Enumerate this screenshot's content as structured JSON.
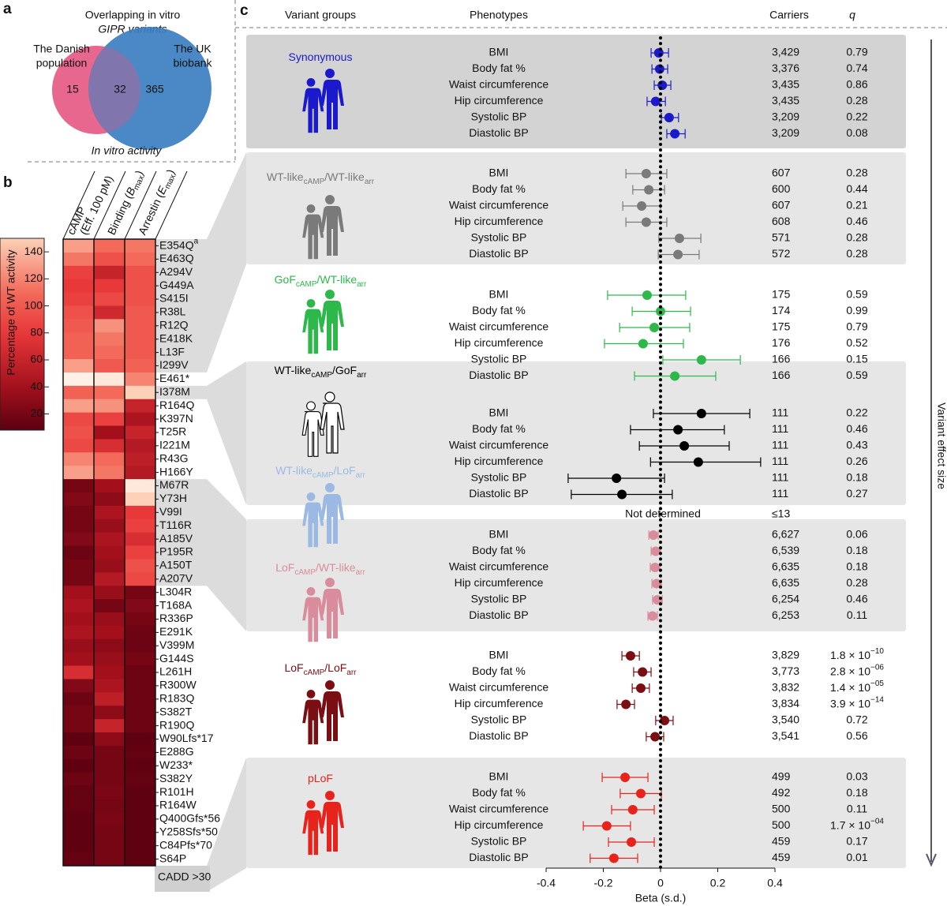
{
  "chart_data": [
    {
      "type": "venn",
      "panel": "a",
      "title": [
        "Overlapping in vitro",
        "GIPR variants"
      ],
      "sets": [
        {
          "name": [
            "The Danish",
            "population"
          ],
          "color": "#e8688f",
          "value": 15
        },
        {
          "name": [
            "The UK",
            "biobank"
          ],
          "color": "#3b7fc1",
          "value": 365
        }
      ],
      "overlap": 32,
      "xlabel": "In vitro activity"
    },
    {
      "type": "heatmap",
      "panel": "b",
      "columns": [
        [
          "cAMP",
          "(Eff. 100 pM)"
        ],
        [
          "Binding (",
          "B",
          "max",
          ")"
        ],
        [
          "Arrestin (",
          "E",
          "max",
          ")"
        ]
      ],
      "rows": [
        [
          "E354Q",
          "a"
        ],
        "E463Q",
        "A294V",
        "G449A",
        "S415I",
        "R38L",
        "R12Q",
        "E418K",
        "L13F",
        "I299V",
        "E461*",
        "I378M",
        "R164Q",
        "K397N",
        "T25R",
        "I221M",
        "R43G",
        "H166Y",
        "M67R",
        "Y73H",
        "V99I",
        "T116R",
        "A185V",
        "P195R",
        "A150T",
        "A207V",
        "L304R",
        "T168A",
        "R336P",
        "E291K",
        "V399M",
        "G144S",
        "L261H",
        "R300W",
        "R183Q",
        "S382T",
        "R190Q",
        "W90Lfs*17",
        "E288G",
        "W233*",
        "S382Y",
        "R101H",
        "R164W",
        "Q400Gfs*56",
        "Y258Sfs*50",
        "C84Pfs*70",
        "S64P"
      ],
      "values": [
        [
          130,
          110,
          115
        ],
        [
          115,
          95,
          110
        ],
        [
          85,
          60,
          95
        ],
        [
          80,
          80,
          95
        ],
        [
          85,
          90,
          95
        ],
        [
          95,
          65,
          100
        ],
        [
          100,
          125,
          100
        ],
        [
          105,
          115,
          100
        ],
        [
          105,
          110,
          100
        ],
        [
          130,
          100,
          105
        ],
        [
          170,
          165,
          120
        ],
        [
          105,
          110,
          150
        ],
        [
          130,
          125,
          60
        ],
        [
          90,
          85,
          45
        ],
        [
          95,
          40,
          60
        ],
        [
          90,
          70,
          50
        ],
        [
          120,
          110,
          55
        ],
        [
          130,
          115,
          50
        ],
        [
          20,
          40,
          165
        ],
        [
          25,
          30,
          150
        ],
        [
          20,
          45,
          80
        ],
        [
          20,
          35,
          85
        ],
        [
          25,
          45,
          70
        ],
        [
          15,
          40,
          85
        ],
        [
          20,
          35,
          95
        ],
        [
          20,
          50,
          90
        ],
        [
          40,
          35,
          20
        ],
        [
          45,
          20,
          25
        ],
        [
          40,
          35,
          20
        ],
        [
          45,
          40,
          15
        ],
        [
          35,
          30,
          15
        ],
        [
          40,
          35,
          20
        ],
        [
          70,
          40,
          15
        ],
        [
          25,
          45,
          15
        ],
        [
          15,
          55,
          15
        ],
        [
          20,
          30,
          15
        ],
        [
          20,
          60,
          15
        ],
        [
          10,
          30,
          10
        ],
        [
          15,
          20,
          12
        ],
        [
          10,
          20,
          10
        ],
        [
          15,
          20,
          12
        ],
        [
          12,
          22,
          10
        ],
        [
          12,
          20,
          10
        ],
        [
          10,
          22,
          10
        ],
        [
          10,
          20,
          10
        ],
        [
          10,
          20,
          10
        ],
        [
          12,
          20,
          10
        ]
      ],
      "colorbar": {
        "label": "Percentage of WT activity",
        "lim": [
          8,
          150
        ],
        "ticks": [
          20,
          40,
          60,
          80,
          100,
          120,
          140
        ]
      },
      "footer": "CADD >30"
    },
    {
      "type": "forest",
      "panel": "c",
      "headers": {
        "groups": "Variant groups",
        "phenotypes": "Phenotypes",
        "carriers": "Carriers",
        "q": "q"
      },
      "xlim": [
        -0.4,
        0.4
      ],
      "xticks": [
        -0.4,
        -0.2,
        0,
        0.2,
        0.4
      ],
      "xlabel": "Beta (s.d.)",
      "side_label": "Variant effect size",
      "groups": [
        {
          "name": [
            "Synonymous"
          ],
          "color": "#1a1acc",
          "phenotypes": [
            "BMI",
            "Body fat %",
            "Waist circumference",
            "Hip circumference",
            "Systolic BP",
            "Diastolic BP"
          ],
          "beta": [
            -0.006,
            -0.003,
            0.006,
            -0.017,
            0.03,
            0.05
          ],
          "ci": [
            [
              -0.033,
              0.028
            ],
            [
              -0.03,
              0.025
            ],
            [
              -0.022,
              0.036
            ],
            [
              -0.047,
              0.017
            ],
            [
              0.003,
              0.063
            ],
            [
              0.022,
              0.086
            ]
          ],
          "carriers": [
            "3,429",
            "3,376",
            "3,435",
            "3,435",
            "3,209",
            "3,209"
          ],
          "q": [
            "0.79",
            "0.74",
            "0.86",
            "0.28",
            "0.22",
            "0.08"
          ]
        },
        {
          "name": [
            "WT-like",
            "cAMP",
            "/WT-like",
            "arr"
          ],
          "color": "#7a7a7a",
          "phenotypes": [
            "BMI",
            "Body fat %",
            "Waist circumference",
            "Hip circumference",
            "Systolic BP",
            "Diastolic BP"
          ],
          "beta": [
            -0.05,
            -0.041,
            -0.066,
            -0.05,
            0.066,
            0.061
          ],
          "ci": [
            [
              -0.121,
              0.022
            ],
            [
              -0.097,
              0.014
            ],
            [
              -0.132,
              0
            ],
            [
              -0.121,
              0.022
            ],
            [
              -0.006,
              0.141
            ],
            [
              -0.008,
              0.135
            ]
          ],
          "carriers": [
            "607",
            "600",
            "607",
            "608",
            "571",
            "572"
          ],
          "q": [
            "0.28",
            "0.44",
            "0.21",
            "0.46",
            "0.28",
            "0.28"
          ]
        },
        {
          "name": [
            "GoF",
            "cAMP",
            "/WT-like",
            "arr"
          ],
          "color": "#2db84a",
          "phenotypes": [
            "BMI",
            "Body fat %",
            "Waist circumference",
            "Hip circumference",
            "Systolic BP",
            "Diastolic BP"
          ],
          "beta": [
            -0.047,
            0,
            -0.022,
            -0.061,
            0.143,
            0.05
          ],
          "ci": [
            [
              -0.185,
              0.088
            ],
            [
              -0.099,
              0.105
            ],
            [
              -0.143,
              0.102
            ],
            [
              -0.196,
              0.08
            ],
            [
              0.008,
              0.279
            ],
            [
              -0.091,
              0.193
            ]
          ],
          "carriers": [
            "175",
            "174",
            "175",
            "176",
            "166",
            "166"
          ],
          "q": [
            "0.59",
            "0.99",
            "0.79",
            "0.52",
            "0.15",
            "0.59"
          ]
        },
        {
          "name": [
            "WT-like",
            "cAMP",
            "/GoF",
            "arr"
          ],
          "color": "#000000",
          "icon_style": "outline",
          "phenotypes": [
            "BMI",
            "Body fat %",
            "Waist circumference",
            "Hip circumference",
            "Systolic BP",
            "Diastolic BP"
          ],
          "beta": [
            0.143,
            0.061,
            0.083,
            0.132,
            -0.154,
            -0.135
          ],
          "ci": [
            [
              -0.025,
              0.312
            ],
            [
              -0.105,
              0.223
            ],
            [
              -0.074,
              0.24
            ],
            [
              -0.035,
              0.35
            ],
            [
              -0.323,
              0.014
            ],
            [
              -0.312,
              0.041
            ]
          ],
          "carriers": [
            "111",
            "111",
            "111",
            "111",
            "111",
            "111"
          ],
          "q": [
            "0.22",
            "0.46",
            "0.43",
            "0.26",
            "0.18",
            "0.27"
          ]
        },
        {
          "name": [
            "WT-like",
            "cAMP",
            "/LoF",
            "arr"
          ],
          "color": "#9bb9e2",
          "note": "Not determined",
          "carriers": "≤13"
        },
        {
          "name": [
            "LoF",
            "cAMP",
            "/WT-like",
            "arr"
          ],
          "color": "#d98c9b",
          "phenotypes": [
            "BMI",
            "Body fat %",
            "Waist circumference",
            "Hip circumference",
            "Systolic BP",
            "Diastolic BP"
          ],
          "beta": [
            -0.025,
            -0.017,
            -0.019,
            -0.014,
            -0.011,
            -0.028
          ],
          "ci": [
            [
              -0.041,
              -0.008
            ],
            [
              -0.033,
              0
            ],
            [
              -0.036,
              -0.003
            ],
            [
              -0.03,
              0.003
            ],
            [
              -0.028,
              0.006
            ],
            [
              -0.044,
              -0.011
            ]
          ],
          "carriers": [
            "6,627",
            "6,539",
            "6,635",
            "6,635",
            "6,254",
            "6,253"
          ],
          "q": [
            "0.06",
            "0.18",
            "0.18",
            "0.28",
            "0.46",
            "0.11"
          ]
        },
        {
          "name": [
            "LoF",
            "cAMP",
            "/LoF",
            "arr"
          ],
          "color": "#7a0e12",
          "phenotypes": [
            "BMI",
            "Body fat %",
            "Waist circumference",
            "Hip circumference",
            "Systolic BP",
            "Diastolic BP"
          ],
          "beta": [
            -0.105,
            -0.063,
            -0.069,
            -0.121,
            0.014,
            -0.019
          ],
          "ci": [
            [
              -0.135,
              -0.074
            ],
            [
              -0.094,
              -0.033
            ],
            [
              -0.099,
              -0.039
            ],
            [
              -0.152,
              -0.091
            ],
            [
              -0.017,
              0.044
            ],
            [
              -0.05,
              0.011
            ]
          ],
          "carriers": [
            "3,829",
            "3,773",
            "3,832",
            "3,834",
            "3,540",
            "3,541"
          ],
          "q": [
            {
              "base": "1.8 × 10",
              "exp": "−10"
            },
            {
              "base": "2.8 × 10",
              "exp": "−06"
            },
            {
              "base": "1.4 × 10",
              "exp": "−05"
            },
            {
              "base": "3.9 × 10",
              "exp": "−14"
            },
            "0.72",
            "0.56"
          ]
        },
        {
          "name": [
            "pLoF"
          ],
          "color": "#e8231c",
          "phenotypes": [
            "BMI",
            "Body fat %",
            "Waist circumference",
            "Hip circumference",
            "Systolic BP",
            "Diastolic BP"
          ],
          "beta": [
            -0.124,
            -0.069,
            -0.097,
            -0.188,
            -0.102,
            -0.163
          ],
          "ci": [
            [
              -0.204,
              -0.044
            ],
            [
              -0.141,
              0.003
            ],
            [
              -0.171,
              -0.022
            ],
            [
              -0.27,
              -0.105
            ],
            [
              -0.182,
              -0.022
            ],
            [
              -0.246,
              -0.08
            ]
          ],
          "carriers": [
            "499",
            "492",
            "500",
            "500",
            "459",
            "459"
          ],
          "q": [
            "0.03",
            "0.18",
            "0.11",
            {
              "base": "1.7 × 10",
              "exp": "−04"
            },
            "0.17",
            "0.01"
          ]
        }
      ]
    }
  ]
}
